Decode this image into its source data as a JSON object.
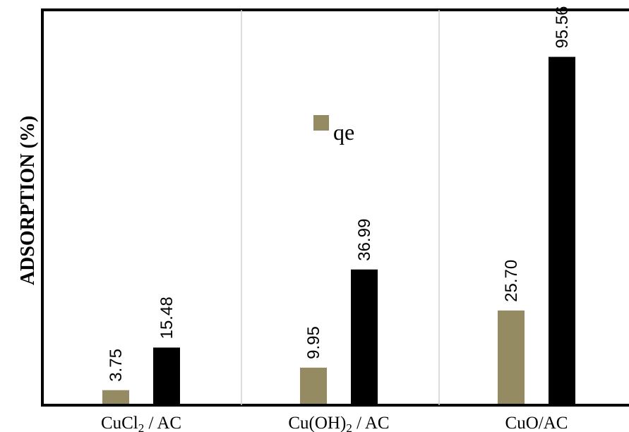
{
  "chart_data": {
    "type": "bar",
    "categories": [
      {
        "base": "CuCl",
        "sub": "2",
        "rest": "/ AC"
      },
      {
        "base": "Cu(OH)",
        "sub": "2",
        "rest": "/ AC"
      },
      {
        "base": "CuO/AC",
        "sub": "",
        "rest": ""
      }
    ],
    "series": [
      {
        "name": "qe",
        "color": "#958B62",
        "values": [
          3.75,
          9.95,
          25.7
        ],
        "labels": [
          "3.75",
          "9.95",
          "25.70"
        ]
      },
      {
        "color": "#000000",
        "values": [
          15.48,
          36.99,
          95.56
        ],
        "labels": [
          "15.48",
          "36.99",
          "95.56"
        ]
      }
    ],
    "ylabel": "ADSORPTION (%)",
    "ylim": [
      0,
      108.5
    ],
    "legend": {
      "placement": "top-center"
    },
    "grid": {
      "vertical_separators": true,
      "horizontal": false
    }
  }
}
